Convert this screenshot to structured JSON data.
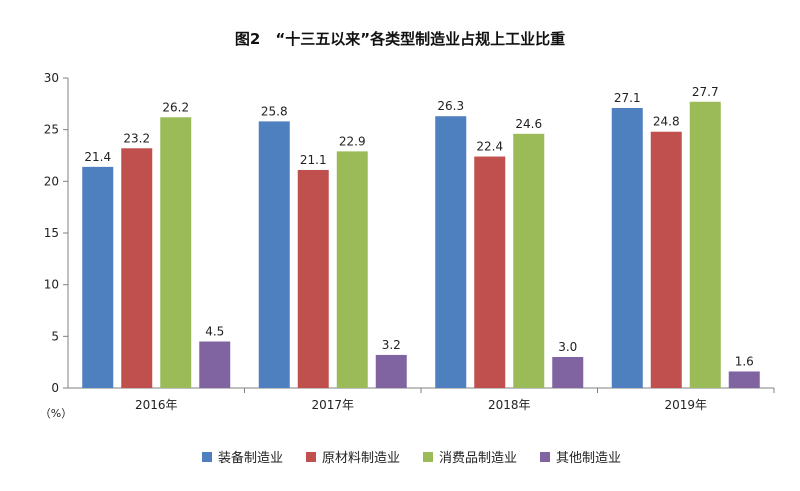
{
  "chart_data": {
    "type": "bar",
    "title": "图2　“十三五以来”各类型制造业占规上工业比重",
    "ylabel": "",
    "unit": "（%）",
    "ylim": [
      0,
      30
    ],
    "yticks": [
      0,
      5,
      10,
      15,
      20,
      25,
      30
    ],
    "categories": [
      "2016年",
      "2017年",
      "2018年",
      "2019年"
    ],
    "series": [
      {
        "name": "装备制造业",
        "color": "#4e7fbf",
        "values": [
          21.4,
          25.8,
          26.3,
          27.1
        ],
        "labels": [
          "21.4",
          "25.8",
          "26.3",
          "27.1"
        ]
      },
      {
        "name": "原材料制造业",
        "color": "#c0504d",
        "values": [
          23.2,
          21.1,
          22.4,
          24.8
        ],
        "labels": [
          "23.2",
          "21.1",
          "22.4",
          "24.8"
        ]
      },
      {
        "name": "消费品制造业",
        "color": "#9bbb59",
        "values": [
          26.2,
          22.9,
          24.6,
          27.7
        ],
        "labels": [
          "26.2",
          "22.9",
          "24.6",
          "27.7"
        ]
      },
      {
        "name": "其他制造业",
        "color": "#8064a2",
        "values": [
          4.5,
          3.2,
          3.0,
          1.6
        ],
        "labels": [
          "4.5",
          "3.2",
          "3.0",
          "1.6"
        ]
      }
    ],
    "legend_position": "bottom-center",
    "grid": false
  }
}
